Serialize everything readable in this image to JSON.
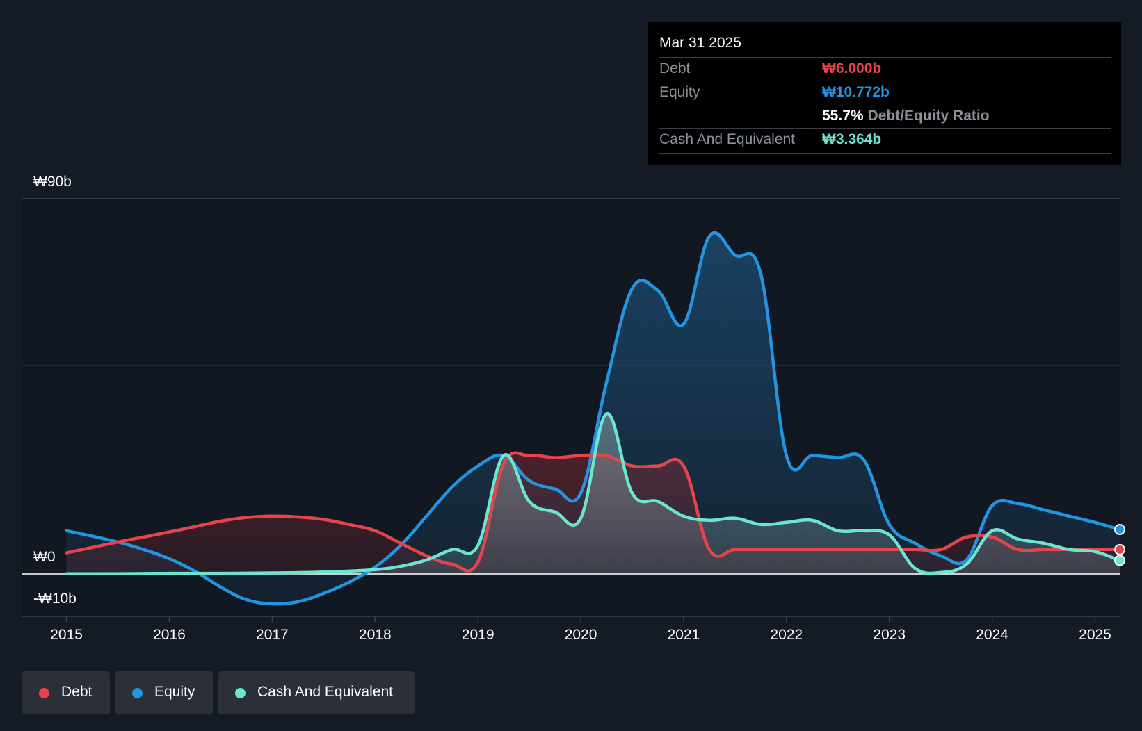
{
  "tooltip": {
    "date": "Mar 31 2025",
    "debt_label": "Debt",
    "debt_value": "₩6.000b",
    "equity_label": "Equity",
    "equity_value": "₩10.772b",
    "ratio_value": "55.7%",
    "ratio_label": "Debt/Equity Ratio",
    "cash_label": "Cash And Equivalent",
    "cash_value": "₩3.364b"
  },
  "legend": {
    "debt": "Debt",
    "equity": "Equity",
    "cash": "Cash And Equivalent"
  },
  "colors": {
    "debt": "#e5444c",
    "equity": "#2394df",
    "cash": "#6ce5d0"
  },
  "chart_data": {
    "type": "area",
    "title": "",
    "xlabel": "",
    "ylabel": "",
    "ylim": [
      -10,
      90
    ],
    "y_tick_labels": [
      "₩90b",
      "₩0",
      "-₩10b"
    ],
    "x_ticks": [
      2015,
      2016,
      2017,
      2018,
      2019,
      2020,
      2021,
      2022,
      2023,
      2024,
      2025
    ],
    "x_tick_labels": [
      "2015",
      "2016",
      "2017",
      "2018",
      "2019",
      "2020",
      "2021",
      "2022",
      "2023",
      "2024",
      "2025"
    ],
    "xlim": [
      2014.57,
      2025.24
    ],
    "series": [
      {
        "name": "Equity",
        "key": "equity",
        "x": [
          2015,
          2015.25,
          2015.5,
          2015.75,
          2016,
          2016.25,
          2016.5,
          2016.75,
          2017,
          2017.25,
          2017.5,
          2017.75,
          2018,
          2018.25,
          2018.5,
          2018.75,
          2019,
          2019.25,
          2019.5,
          2019.75,
          2020,
          2020.25,
          2020.5,
          2020.75,
          2021,
          2021.25,
          2021.5,
          2021.75,
          2022,
          2022.25,
          2022.5,
          2022.75,
          2023,
          2023.25,
          2023.5,
          2023.75,
          2024,
          2024.25,
          2024.5,
          2024.75,
          2025,
          2025.24
        ],
        "values": [
          10.5,
          9.2,
          7.8,
          6.0,
          3.8,
          0.8,
          -3.0,
          -6.0,
          -7.0,
          -6.5,
          -4.5,
          -1.8,
          1.8,
          7.0,
          14.0,
          21.0,
          26.0,
          28.5,
          22.5,
          20.5,
          19.5,
          46.0,
          68.5,
          68.0,
          60.0,
          81.0,
          76.5,
          72.0,
          28.5,
          28.5,
          28.0,
          27.5,
          12.0,
          7.5,
          4.5,
          3.5,
          16.5,
          17.0,
          15.5,
          14.0,
          12.5,
          10.8
        ]
      },
      {
        "name": "Debt",
        "key": "debt",
        "x": [
          2015,
          2015.25,
          2015.5,
          2015.75,
          2016,
          2016.25,
          2016.5,
          2016.75,
          2017,
          2017.25,
          2017.5,
          2017.75,
          2018,
          2018.25,
          2018.5,
          2018.75,
          2019,
          2019.25,
          2019.5,
          2019.75,
          2020,
          2020.25,
          2020.5,
          2020.75,
          2021,
          2021.25,
          2021.5,
          2021.75,
          2022,
          2022.25,
          2022.5,
          2022.75,
          2023,
          2023.25,
          2023.5,
          2023.75,
          2024,
          2024.25,
          2024.5,
          2024.75,
          2025,
          2025.24
        ],
        "values": [
          5.2,
          6.5,
          7.8,
          9.0,
          10.2,
          11.5,
          12.8,
          13.7,
          14.0,
          13.8,
          13.2,
          12.0,
          10.5,
          7.5,
          4.5,
          2.5,
          3.0,
          26.5,
          28.5,
          28.0,
          28.5,
          28.5,
          26.0,
          26.0,
          26.0,
          6.0,
          6.0,
          6.0,
          6.0,
          6.0,
          6.0,
          6.0,
          6.0,
          6.0,
          6.0,
          9.0,
          9.0,
          6.0,
          6.0,
          6.0,
          6.0,
          6.0
        ]
      },
      {
        "name": "Cash And Equivalent",
        "key": "cash",
        "x": [
          2015,
          2015.5,
          2016,
          2016.5,
          2017,
          2017.5,
          2018,
          2018.25,
          2018.5,
          2018.75,
          2019,
          2019.25,
          2019.5,
          2019.75,
          2020,
          2020.25,
          2020.5,
          2020.75,
          2021,
          2021.25,
          2021.5,
          2021.75,
          2022,
          2022.25,
          2022.5,
          2022.75,
          2023,
          2023.25,
          2023.5,
          2023.75,
          2024,
          2024.25,
          2024.5,
          2024.75,
          2025,
          2025.24
        ],
        "values": [
          0.2,
          0.2,
          0.3,
          0.3,
          0.4,
          0.6,
          1.2,
          2.0,
          3.5,
          6.0,
          7.0,
          28.5,
          17.5,
          15.0,
          13.5,
          38.5,
          19.5,
          17.5,
          14.0,
          13.0,
          13.5,
          12.0,
          12.5,
          13.0,
          10.5,
          10.5,
          9.5,
          1.5,
          0.5,
          2.5,
          10.5,
          8.5,
          7.5,
          6.0,
          5.5,
          3.4
        ]
      }
    ]
  }
}
